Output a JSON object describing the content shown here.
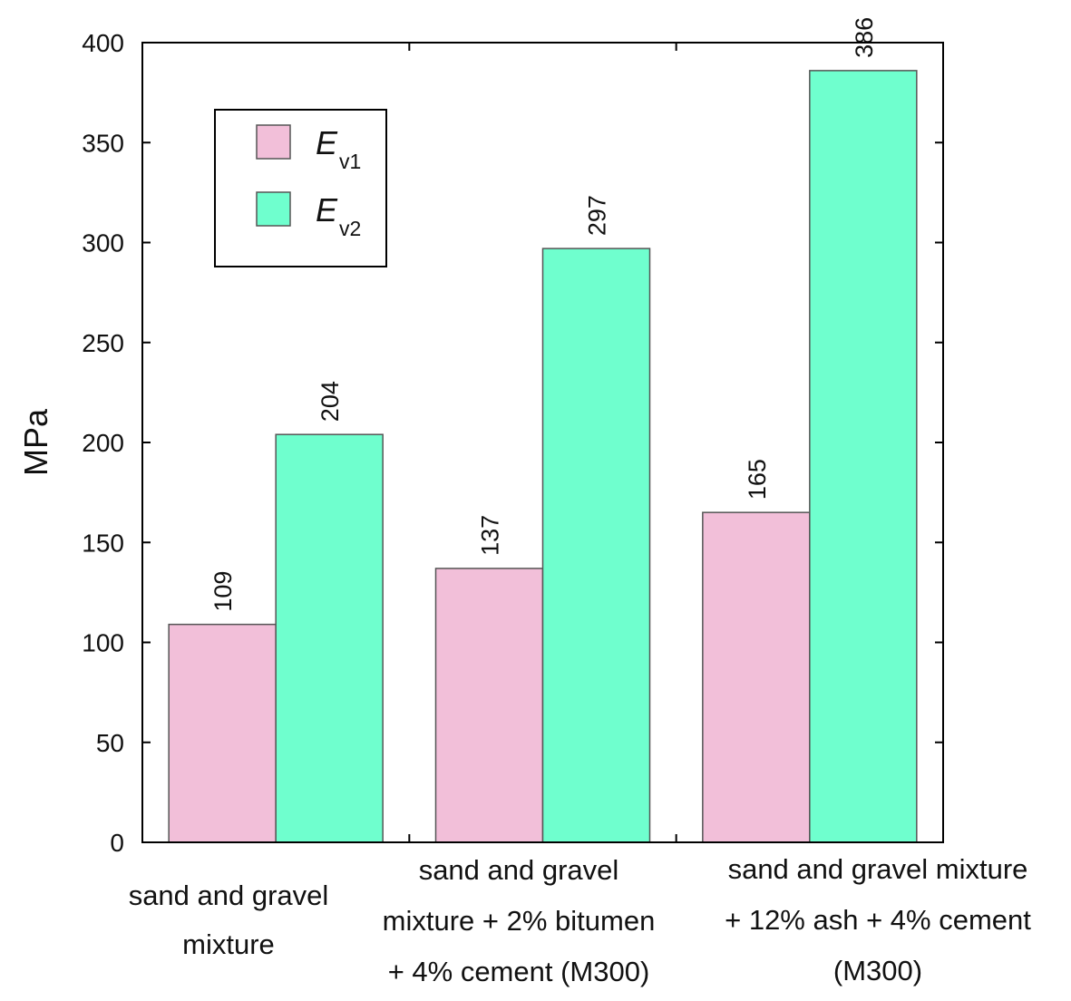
{
  "chart_data": {
    "type": "bar",
    "categories": [
      [
        "sand and gravel",
        "mixture"
      ],
      [
        "sand and gravel",
        "mixture + 2% bitumen",
        "+ 4% cement (M300)"
      ],
      [
        "sand and gravel mixture",
        "+ 12% ash + 4% cement",
        "(M300)"
      ]
    ],
    "series": [
      {
        "name": "E",
        "subscript": "v1",
        "color": "#f2bfd9",
        "values": [
          109,
          137,
          165
        ]
      },
      {
        "name": "E",
        "subscript": "v2",
        "color": "#6fffce",
        "values": [
          204,
          297,
          386
        ]
      }
    ],
    "ylabel": "MPa",
    "ylim": [
      0,
      400
    ],
    "yticks": [
      0,
      50,
      100,
      150,
      200,
      250,
      300,
      350,
      400
    ],
    "legend_position": "top-left",
    "grid": false
  }
}
